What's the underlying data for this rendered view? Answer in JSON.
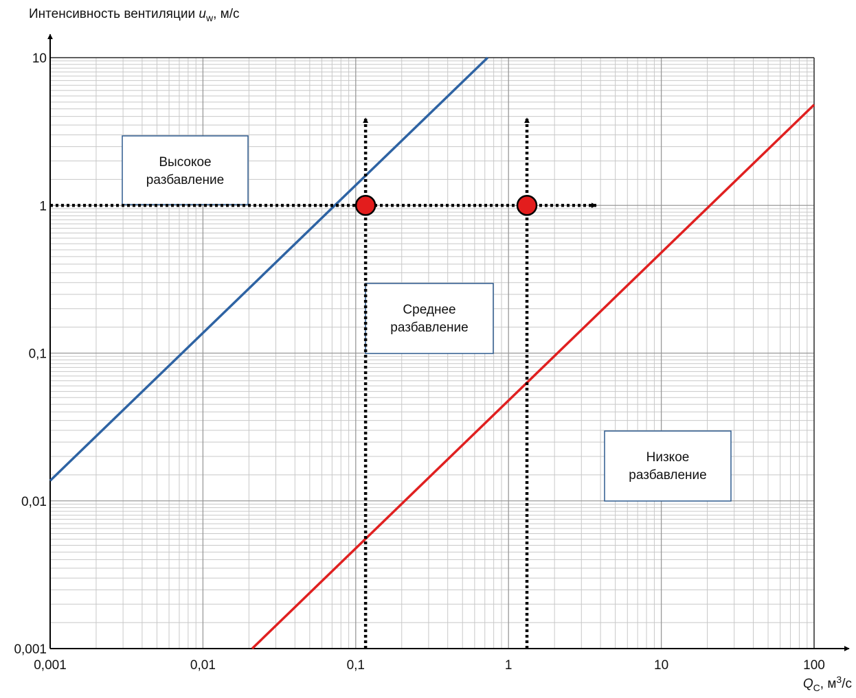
{
  "chart_data": {
    "type": "line",
    "ylabel": [
      "Интенсивность вентиляции ",
      "u",
      "w",
      ", м/с"
    ],
    "xlabel": [
      "Q",
      "C",
      ", м",
      "3",
      "/с"
    ],
    "log_x": true,
    "log_y": true,
    "grid": true,
    "xlim": [
      0.001,
      100
    ],
    "ylim": [
      0.001,
      10
    ],
    "xticks": [
      {
        "value": 0.001,
        "label": "0,001"
      },
      {
        "value": 0.01,
        "label": "0,01"
      },
      {
        "value": 0.1,
        "label": "0,1"
      },
      1,
      10,
      100
    ],
    "yticks": [
      {
        "value": 0.001,
        "label": "0,001"
      },
      {
        "value": 0.01,
        "label": "0,01"
      },
      {
        "value": 0.1,
        "label": "0,1"
      },
      1,
      10
    ],
    "series": [
      {
        "color": "#2e63a3",
        "x": [
          0.001,
          0.73
        ],
        "values": [
          0.0137,
          10
        ]
      },
      {
        "color": "#e02020",
        "x": [
          0.021,
          100
        ],
        "values": [
          0.001,
          4.8
        ]
      }
    ],
    "points": {
      "color": "#e31d1d",
      "x": [
        0.116,
        1.32
      ],
      "values": [
        1,
        1
      ]
    },
    "annotations": [
      {
        "lines": [
          "Высокое",
          "разбавление"
        ]
      },
      {
        "lines": [
          "Среднее",
          "разбавление"
        ]
      },
      {
        "lines": [
          "Низкое",
          "разбавление"
        ]
      }
    ]
  }
}
